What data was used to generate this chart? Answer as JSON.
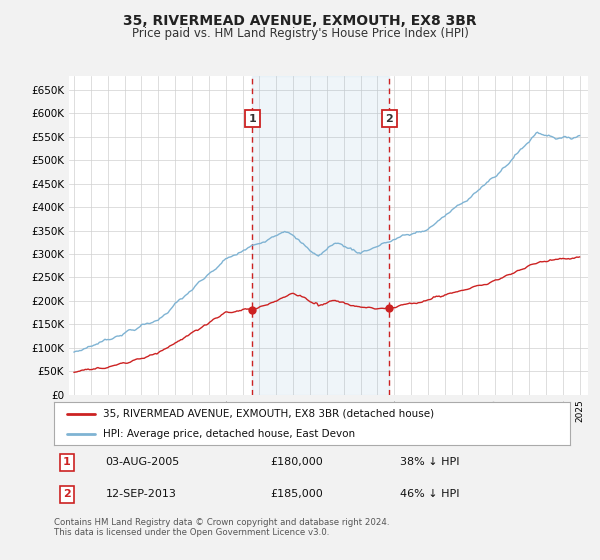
{
  "title": "35, RIVERMEAD AVENUE, EXMOUTH, EX8 3BR",
  "subtitle": "Price paid vs. HM Land Registry's House Price Index (HPI)",
  "bg_color": "#f2f2f2",
  "plot_bg_color": "#ffffff",
  "grid_color": "#d0d0d0",
  "hpi_color": "#7fb3d3",
  "price_color": "#cc2222",
  "marker_color": "#cc2222",
  "sale1_date_num": 2005.583,
  "sale1_price": 180000,
  "sale1_label": "1",
  "sale1_text": "03-AUG-2005",
  "sale1_price_text": "£180,000",
  "sale1_pct_text": "38% ↓ HPI",
  "sale2_date_num": 2013.708,
  "sale2_price": 185000,
  "sale2_label": "2",
  "sale2_text": "12-SEP-2013",
  "sale2_price_text": "£185,000",
  "sale2_pct_text": "46% ↓ HPI",
  "ylabel_ticks": [
    0,
    50000,
    100000,
    150000,
    200000,
    250000,
    300000,
    350000,
    400000,
    450000,
    500000,
    550000,
    600000,
    650000
  ],
  "ylabel_labels": [
    "£0",
    "£50K",
    "£100K",
    "£150K",
    "£200K",
    "£250K",
    "£300K",
    "£350K",
    "£400K",
    "£450K",
    "£500K",
    "£550K",
    "£600K",
    "£650K"
  ],
  "xmin": 1994.7,
  "xmax": 2025.5,
  "ymin": 0,
  "ymax": 680000,
  "legend_label1": "35, RIVERMEAD AVENUE, EXMOUTH, EX8 3BR (detached house)",
  "legend_label2": "HPI: Average price, detached house, East Devon",
  "footnote1": "Contains HM Land Registry data © Crown copyright and database right 2024.",
  "footnote2": "This data is licensed under the Open Government Licence v3.0."
}
